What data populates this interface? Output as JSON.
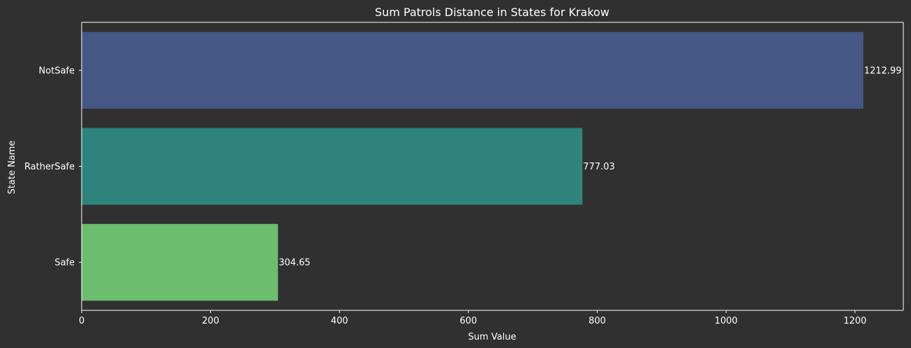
{
  "chart_data": {
    "type": "bar",
    "orientation": "horizontal",
    "title": "Sum Patrols Distance in States for Krakow",
    "xlabel": "Sum Value",
    "ylabel": "State Name",
    "categories": [
      "NotSafe",
      "RatherSafe",
      "Safe"
    ],
    "values": [
      1212.99,
      777.03,
      304.65
    ],
    "value_labels": [
      "1212.99",
      "777.03",
      "304.65"
    ],
    "bar_colors": [
      "#455785",
      "#2E837D",
      "#6CBD6D"
    ],
    "xlim": [
      0,
      1275
    ],
    "xticks": [
      0,
      200,
      400,
      600,
      800,
      1000,
      1200
    ],
    "xtick_labels": [
      "0",
      "200",
      "400",
      "600",
      "800",
      "1000",
      "1200"
    ],
    "grid": false,
    "legend": "none"
  },
  "colors": {
    "background": "#303030",
    "axes": "#ffffff",
    "text": "#ffffff"
  }
}
